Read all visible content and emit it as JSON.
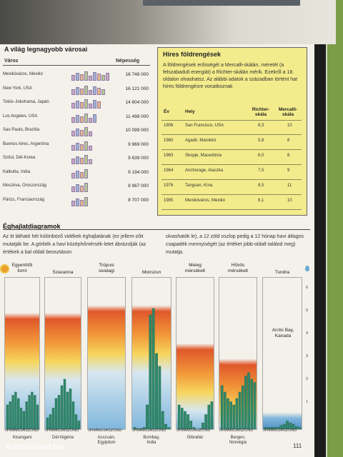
{
  "cities": {
    "title": "A világ legnagyobb városai",
    "col_city": "Város",
    "col_pop": "Népesség",
    "rows": [
      {
        "name": "Mexikóváros, Mexikó",
        "pop": "16 748 000"
      },
      {
        "name": "New York, USA",
        "pop": "16 121 000"
      },
      {
        "name": "Tokió–Jokohama, Japán",
        "pop": "14 604 000"
      },
      {
        "name": "Los Angeles, USA",
        "pop": "11 498 000"
      },
      {
        "name": "Sao Paulo, Brazília",
        "pop": "10 099 000"
      },
      {
        "name": "Buenos Aires, Argentína",
        "pop": "9 969 000"
      },
      {
        "name": "Szöul, Dél-Korea",
        "pop": "9 639 000"
      },
      {
        "name": "Kalkutta, India",
        "pop": "9 194 000"
      },
      {
        "name": "Moszkva, Oroszország",
        "pop": "8 967 000"
      },
      {
        "name": "Párizs, Franciaország",
        "pop": "8 707 000"
      }
    ]
  },
  "earthquakes": {
    "title": "Híres földrengések",
    "intro": "A földrengések erősségét a Mercalli-skálán, méretét (a felszabadult energiát) a Richter-skálán mérik. Ezekről a 18. oldalon olvashatsz. Az alábbi adatok a században történt hat híres földrengésre vonatkoznak",
    "head_year": "Év",
    "head_place": "Hely",
    "head_richter": "Richter-skála",
    "head_mercalli": "Mercalli-skála",
    "rows": [
      {
        "year": "1906",
        "place": "San Francisco, USA",
        "richter": "8,3",
        "mercalli": "10"
      },
      {
        "year": "1960",
        "place": "Agadir, Marokkó",
        "richter": "5,8",
        "mercalli": "8"
      },
      {
        "year": "1963",
        "place": "Skopje, Macedónia",
        "richter": "6,0",
        "mercalli": "8"
      },
      {
        "year": "1964",
        "place": "Anchorage, Alaszka",
        "richter": "7,5",
        "mercalli": "9"
      },
      {
        "year": "1976",
        "place": "Tangsan, Kína",
        "richter": "8,5",
        "mercalli": "11"
      },
      {
        "year": "1985",
        "place": "Mexikóváros, Mexikó",
        "richter": "8,1",
        "mercalli": "10"
      }
    ]
  },
  "climate": {
    "title": "Éghajlatdiagramok",
    "text_left": "Az itt látható hét különböző vidékek éghajlatának (ez jellem-zőit mutatják be. A görbék a havi középhőmérsék-letet ábrázolják (az értékek a bal oldali beosztáson",
    "text_right": "olvashatók le), a 12 zöld oszlop pedig a 12 hónap havi átlagos csapadék mennyiségét (az értéket jobb-oldalt találod meg) mutatja.",
    "months": "JFMÁMJJASZOND",
    "panels": [
      {
        "label": "Egyenlítői\nforró",
        "place": "Kisangani"
      },
      {
        "label": "Szavanna",
        "place": "Dél-Nigéria"
      },
      {
        "label": "Trópusi\nsivatagi",
        "place": "Asszuán,\nEgyiptom"
      },
      {
        "label": "Monszun",
        "place": "Bombay,\nIndia"
      },
      {
        "label": "Meleg\nmérsékelt",
        "place": "Gibraltár"
      },
      {
        "label": "Hűvös\nmérsékelt",
        "place": "Bergen,\nNorvégia"
      },
      {
        "label": "Tundra",
        "place": ""
      }
    ],
    "tundra_note": "Arctic Bay,\nKanada",
    "scale_right": [
      "6",
      "5",
      "4",
      "3",
      "2",
      "1"
    ]
  },
  "page_number": "111",
  "watermark": "Antikvárium.hu"
}
